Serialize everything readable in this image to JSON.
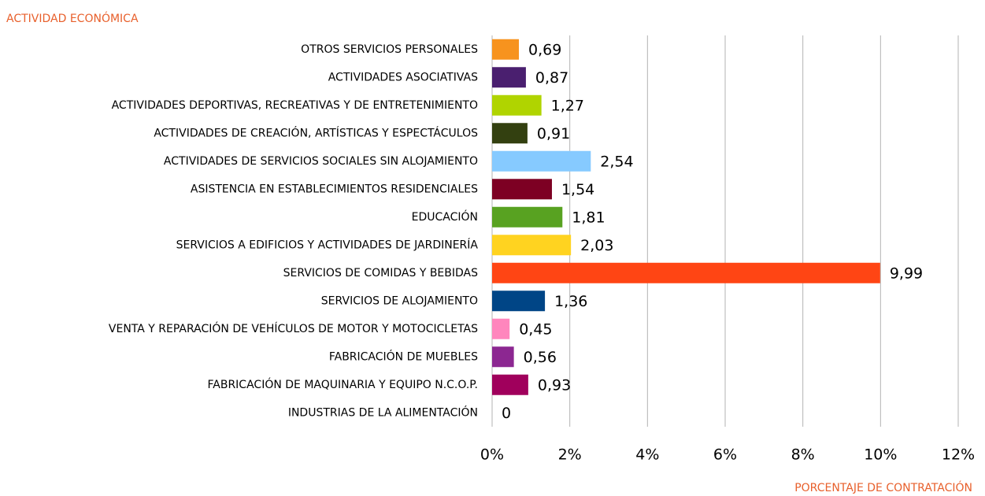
{
  "chart_data": {
    "type": "barh",
    "y_axis_label": "ACTIVIDAD ECONÓMICA",
    "x_axis_label": "PORCENTAJE DE CONTRATACIÓN",
    "categories": [
      "OTROS SERVICIOS PERSONALES",
      "ACTIVIDADES ASOCIATIVAS",
      "ACTIVIDADES DEPORTIVAS, RECREATIVAS Y DE ENTRETENIMIENTO",
      "ACTIVIDADES DE CREACIÓN, ARTÍSTICAS Y ESPECTÁCULOS",
      "ACTIVIDADES DE SERVICIOS SOCIALES SIN ALOJAMIENTO",
      "ASISTENCIA EN ESTABLECIMIENTOS RESIDENCIALES",
      "EDUCACIÓN",
      "SERVICIOS A EDIFICIOS Y ACTIVIDADES DE JARDINERÍA",
      "SERVICIOS DE COMIDAS Y BEBIDAS",
      "SERVICIOS DE ALOJAMIENTO",
      "VENTA Y REPARACIÓN DE VEHÍCULOS DE MOTOR Y MOTOCICLETAS",
      "FABRICACIÓN DE MUEBLES",
      "FABRICACIÓN DE MAQUINARIA Y EQUIPO N.C.O.P.",
      "INDUSTRIAS DE LA ALIMENTACIÓN"
    ],
    "values": [
      0.69,
      0.87,
      1.27,
      0.91,
      2.54,
      1.54,
      1.81,
      2.03,
      9.99,
      1.36,
      0.45,
      0.56,
      0.93,
      0
    ],
    "value_labels": [
      "0,69",
      "0,87",
      "1,27",
      "0,91",
      "2,54",
      "1,54",
      "1,81",
      "2,03",
      "9,99",
      "1,36",
      "0,45",
      "0,56",
      "0,93",
      "0"
    ],
    "colors": [
      "#f7931e",
      "#4a1f6f",
      "#b0d400",
      "#334010",
      "#86caff",
      "#7d0023",
      "#58a221",
      "#ffd320",
      "#ff4514",
      "#004586",
      "#ff86bd",
      "#8c2791",
      "#a0005c",
      "#8a6137"
    ],
    "xlim": [
      0,
      12
    ],
    "xticks": [
      {
        "value": 0,
        "label": "0%"
      },
      {
        "value": 2,
        "label": "2%"
      },
      {
        "value": 4,
        "label": "4%"
      },
      {
        "value": 6,
        "label": "6%"
      },
      {
        "value": 8,
        "label": "8%"
      },
      {
        "value": 10,
        "label": "10%"
      },
      {
        "value": 12,
        "label": "12%"
      }
    ],
    "grid": true
  }
}
